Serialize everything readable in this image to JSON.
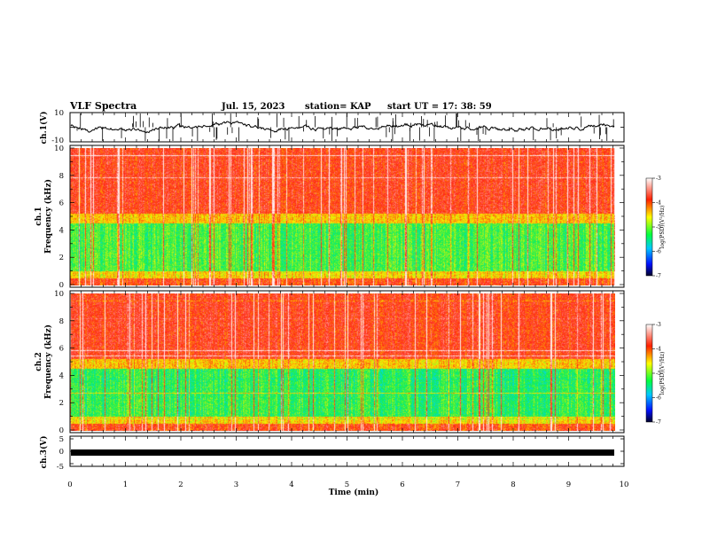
{
  "header": {
    "title": "VLF Spectra",
    "date": "Jul. 15, 2023",
    "station": "station= KAP",
    "start": "start UT =  17: 38: 59"
  },
  "chart_data": [
    {
      "type": "line",
      "panel": "ch1-voltage",
      "ylabel": "ch.1(V)",
      "ylim": [
        -10,
        10
      ],
      "y_ticks": [
        "10",
        "-10"
      ],
      "x_range_min": [
        0,
        9.8
      ],
      "description_only": false
    },
    {
      "type": "heatmap",
      "panel": "ch1-spectrogram",
      "ylabel": "Frequency (kHz)",
      "channel": "ch.1",
      "ylim": [
        0,
        10
      ],
      "y_ticks": [
        "0",
        "2",
        "4",
        "6",
        "8",
        "10"
      ],
      "colorbar": {
        "label": "log(PSD)(V²/Hz)",
        "range": [
          -7,
          -3
        ],
        "ticks": [
          "-3",
          "-4",
          "-5",
          "-6",
          "-7"
        ]
      }
    },
    {
      "type": "heatmap",
      "panel": "ch2-spectrogram",
      "ylabel": "Frequency (kHz)",
      "channel": "ch.2",
      "ylim": [
        0,
        10
      ],
      "y_ticks": [
        "0",
        "2",
        "4",
        "6",
        "8",
        "10"
      ],
      "colorbar": {
        "label": "log(PSD)(V²/Hz)",
        "range": [
          -7,
          -3
        ],
        "ticks": [
          "-3",
          "-4",
          "-5",
          "-6",
          "-7"
        ]
      }
    },
    {
      "type": "line",
      "panel": "ch3-voltage",
      "ylabel": "ch.3(V)",
      "ylim": [
        -5,
        5
      ],
      "y_ticks": [
        "5",
        "0",
        "-5"
      ]
    }
  ],
  "xaxis": {
    "label": "Time (min)",
    "range": [
      0,
      10
    ],
    "ticks": [
      "0",
      "1",
      "2",
      "3",
      "4",
      "5",
      "6",
      "7",
      "8",
      "9",
      "10"
    ]
  },
  "colors": {
    "spec_high": "#ff2a1a",
    "spec_mid": "#ffd21a",
    "spec_low": "#22ee55",
    "spec_min": "#1133ff"
  }
}
